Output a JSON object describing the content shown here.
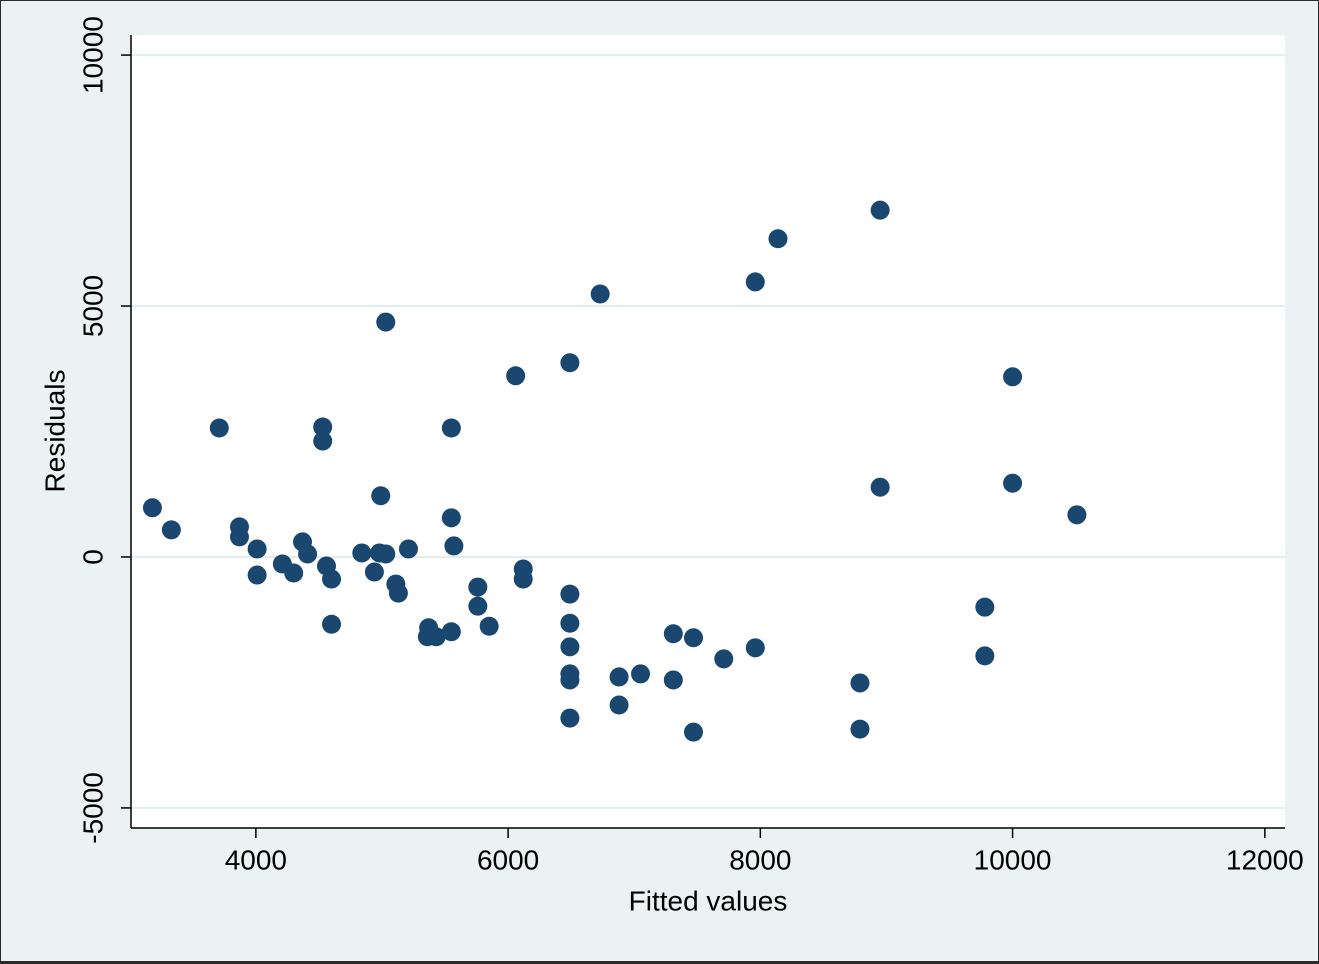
{
  "chart_data": {
    "type": "scatter",
    "x_label": "Fitted values",
    "y_label": "Residuals",
    "x": [
      3180,
      3330,
      3710,
      3870,
      3870,
      4010,
      4010,
      4210,
      4300,
      4370,
      4410,
      4530,
      4530,
      4560,
      4600,
      4600,
      4840,
      4940,
      4990,
      4980,
      5030,
      5030,
      5110,
      5130,
      5210,
      5370,
      5360,
      5430,
      5550,
      5550,
      5550,
      5570,
      5760,
      5760,
      5850,
      6060,
      6120,
      6120,
      6490,
      6490,
      6490,
      6490,
      6490,
      6490,
      6490,
      6730,
      6880,
      6880,
      7050,
      7310,
      7310,
      7470,
      7470,
      7710,
      7960,
      7960,
      8140,
      8790,
      8790,
      8950,
      8950,
      9780,
      9780,
      10000,
      10000,
      10510
    ],
    "values": [
      980,
      540,
      2570,
      600,
      400,
      160,
      -360,
      -140,
      -320,
      300,
      60,
      2590,
      2310,
      -180,
      -440,
      -1340,
      80,
      -300,
      1220,
      80,
      60,
      4680,
      -540,
      -720,
      160,
      -1410,
      -1590,
      -1590,
      -1490,
      780,
      2570,
      220,
      -600,
      -980,
      -1380,
      3610,
      -240,
      -440,
      3870,
      -740,
      -1320,
      -1790,
      -2330,
      -2450,
      -3210,
      5240,
      -2390,
      -2950,
      -2330,
      -1530,
      -2450,
      -1610,
      -3490,
      -2030,
      5480,
      -1810,
      6340,
      -2510,
      -3430,
      6910,
      1390,
      -1000,
      -1970,
      3590,
      1470,
      840
    ],
    "color": "#1a476f",
    "xlim": [
      3010,
      12160
    ],
    "ylim": [
      -5400,
      10400
    ],
    "xticks": [
      4000,
      6000,
      8000,
      10000,
      12000
    ],
    "yticks": [
      -5000,
      0,
      5000,
      10000
    ],
    "grid": true
  }
}
